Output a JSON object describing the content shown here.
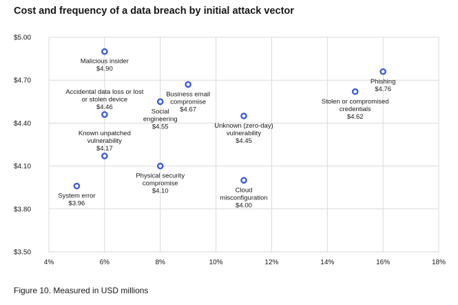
{
  "title": "Cost and frequency of a data breach by initial attack vector",
  "caption": "Figure 10. Measured in USD millions",
  "colors": {
    "point": "#3b5bdb",
    "grid": "#d9d9d9",
    "frame": "#c6c6c6"
  },
  "chart_data": {
    "type": "scatter",
    "title": "Cost and frequency of a data breach by initial attack vector",
    "xlabel": "",
    "ylabel": "",
    "xlim": [
      0.04,
      0.18
    ],
    "ylim": [
      3.5,
      5.0
    ],
    "x_ticks": [
      0.04,
      0.06,
      0.08,
      0.1,
      0.12,
      0.14,
      0.16,
      0.18
    ],
    "x_tick_labels": [
      "4%",
      "6%",
      "8%",
      "10%",
      "12%",
      "14%",
      "16%",
      "18%"
    ],
    "y_ticks": [
      3.5,
      3.8,
      4.1,
      4.4,
      4.7,
      5.0
    ],
    "y_tick_labels": [
      "$3.50",
      "$3.80",
      "$4.10",
      "$4.40",
      "$4.70",
      "$5.00"
    ],
    "grid": true,
    "points": [
      {
        "label": [
          "Malicious insider"
        ],
        "value_label": "$4.90",
        "x": 0.06,
        "y": 4.9,
        "anchor": "below"
      },
      {
        "label": [
          "Accidental data loss or lost",
          "or stolen device"
        ],
        "value_label": "$4.46",
        "x": 0.06,
        "y": 4.46,
        "anchor": "above"
      },
      {
        "label": [
          "Known unpatched",
          "vulnerability"
        ],
        "value_label": "$4.17",
        "x": 0.06,
        "y": 4.17,
        "anchor": "above"
      },
      {
        "label": [
          "System error"
        ],
        "value_label": "$3.96",
        "x": 0.05,
        "y": 3.96,
        "anchor": "below"
      },
      {
        "label": [
          "Social",
          "engineering"
        ],
        "value_label": "$4.55",
        "x": 0.08,
        "y": 4.55,
        "anchor": "below"
      },
      {
        "label": [
          "Physical security",
          "compromise"
        ],
        "value_label": "$4.10",
        "x": 0.08,
        "y": 4.1,
        "anchor": "below"
      },
      {
        "label": [
          "Business email",
          "compromise"
        ],
        "value_label": "$4.67",
        "x": 0.09,
        "y": 4.67,
        "anchor": "below"
      },
      {
        "label": [
          "Unknown (zero-day)",
          "vulnerability"
        ],
        "value_label": "$4.45",
        "x": 0.11,
        "y": 4.45,
        "anchor": "below"
      },
      {
        "label": [
          "Cloud",
          "misconfiguration"
        ],
        "value_label": "$4.00",
        "x": 0.11,
        "y": 4.0,
        "anchor": "below"
      },
      {
        "label": [
          "Stolen or compromised",
          "credentials"
        ],
        "value_label": "$4.62",
        "x": 0.15,
        "y": 4.62,
        "anchor": "below"
      },
      {
        "label": [
          "Phishing"
        ],
        "value_label": "$4.76",
        "x": 0.16,
        "y": 4.76,
        "anchor": "below"
      }
    ]
  }
}
